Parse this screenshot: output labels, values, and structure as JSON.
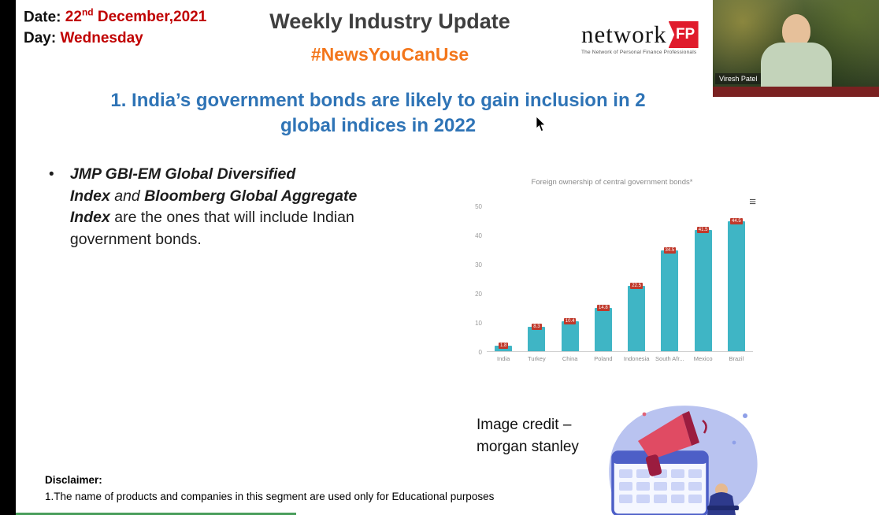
{
  "header": {
    "date_label": "Date: ",
    "date_value_main": "22",
    "date_value_sup": "nd",
    "date_value_rest": " December,2021",
    "day_label": "Day: ",
    "day_value": "Wednesday",
    "title": "Weekly Industry Update",
    "hashtag": "#NewsYouCanUse"
  },
  "logo": {
    "text": "network",
    "badge": "FP",
    "tagline": "The Network of Personal Finance Professionals"
  },
  "webcam": {
    "participant_name": "Viresh Patel"
  },
  "slide": {
    "heading_line1": "1. India’s government bonds are likely to gain inclusion in 2",
    "heading_line2": "global indices in 2022",
    "bullet_marker": "•",
    "bullet_segments": [
      {
        "text": "JMP GBI-EM Global Diversified",
        "style": "bold-italic",
        "break": true
      },
      {
        "text": "Index",
        "style": "bold-italic"
      },
      {
        "text": " and ",
        "style": "italic"
      },
      {
        "text": "Bloomberg Global Aggregate",
        "style": "bold-italic",
        "break": true
      },
      {
        "text": "Index",
        "style": "bold-italic"
      },
      {
        "text": " are the ones that will include Indian government bonds.",
        "style": "normal"
      }
    ],
    "image_credit_line1": "Image credit –",
    "image_credit_line2": "morgan stanley",
    "disclaimer_title": "Disclaimer:",
    "disclaimer_text": "1.The name of products and companies in this segment are used only for Educational purposes"
  },
  "chart_data": {
    "type": "bar",
    "title": "Foreign ownership of central government bonds*",
    "categories": [
      "India",
      "Turkey",
      "China",
      "Poland",
      "Indonesia",
      "South Afr...",
      "Mexico",
      "Brazil"
    ],
    "values": [
      1.8,
      8.3,
      10.4,
      14.8,
      22.5,
      34.5,
      41.5,
      44.5
    ],
    "xlabel": "",
    "ylabel": "",
    "ylim": [
      0,
      50
    ],
    "yticks": [
      0,
      10,
      20,
      30,
      40,
      50
    ],
    "grid": false,
    "legend": "none",
    "bar_color": "#3fb5c5",
    "label_color": "#c0392b",
    "menu_icon": "≡"
  },
  "colors": {
    "accent_red": "#c00000",
    "accent_orange": "#f3761b",
    "heading_blue": "#2f74b6",
    "maroon_strip": "#7a2121",
    "logo_red": "#e01b2c"
  }
}
